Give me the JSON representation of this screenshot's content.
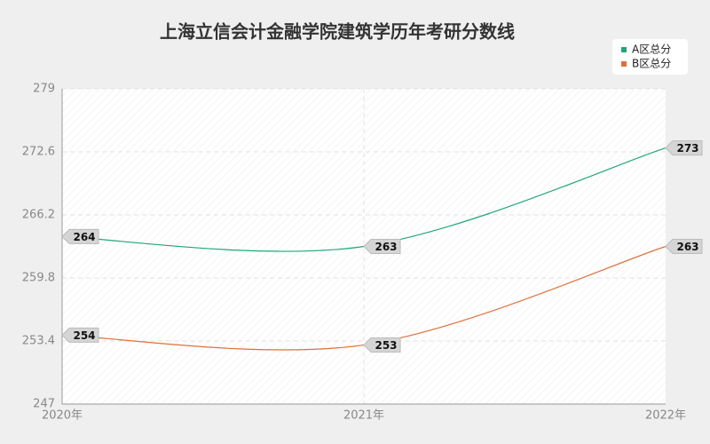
{
  "chart_data": {
    "type": "line",
    "title": "上海立信会计金融学院建筑学历年考研分数线",
    "categories": [
      "2020年",
      "2021年",
      "2022年"
    ],
    "series": [
      {
        "name": "A区总分",
        "color": "#1fa67a",
        "values": [
          264,
          263,
          273
        ]
      },
      {
        "name": "B区总分",
        "color": "#e0703a",
        "values": [
          254,
          253,
          263
        ]
      }
    ],
    "ylim": [
      247,
      279
    ],
    "yticks": [
      247,
      253.4,
      259.8,
      266.2,
      272.6,
      279
    ],
    "grid": true,
    "legend": "top-right"
  }
}
